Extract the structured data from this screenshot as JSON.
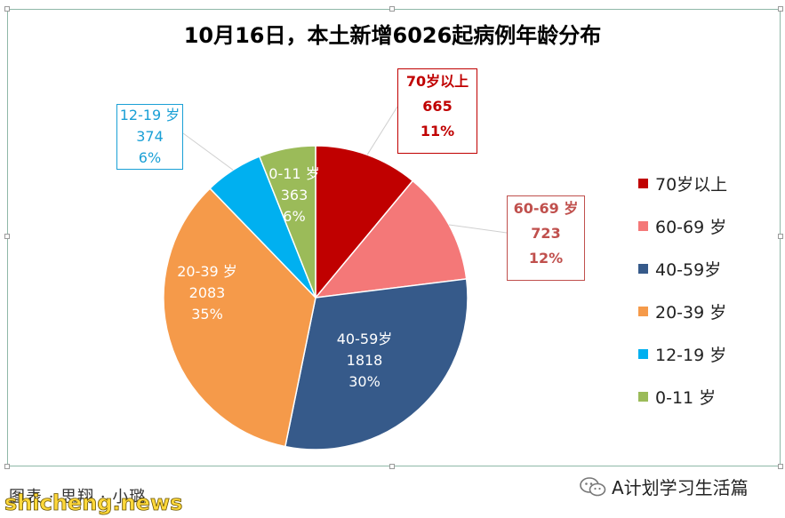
{
  "chart_data": {
    "type": "pie",
    "title": "10月16日，本土新增6026起病例年龄分布",
    "legend_position": "right",
    "slices": [
      {
        "label": "70岁以上",
        "callout_label": "70岁以上",
        "value": 665,
        "percent": "11%",
        "color": "#c00000",
        "label_color": "#c00000"
      },
      {
        "label": "60-69 岁",
        "callout_label": "60-69 岁",
        "value": 723,
        "percent": "12%",
        "color": "#f47878",
        "label_color": "#c0504d"
      },
      {
        "label": "40-59岁",
        "callout_label": "40-59岁",
        "value": 1818,
        "percent": "30%",
        "color": "#365a8a",
        "label_color": "#ffffff"
      },
      {
        "label": "20-39 岁",
        "callout_label": "20-39 岁",
        "value": 2083,
        "percent": "35%",
        "color": "#f59a4a",
        "label_color": "#ffffff"
      },
      {
        "label": "12-19 岁",
        "callout_label": "12-19 岁",
        "value": 374,
        "percent": "6%",
        "color": "#00b0f0",
        "label_color": "#1aa0d6"
      },
      {
        "label": "0-11 岁",
        "callout_label": "0-11 岁",
        "value": 363,
        "percent": "6%",
        "color": "#9bbb59",
        "label_color": "#ffffff"
      }
    ]
  },
  "footer": {
    "credit": "图表 · 思翔 · 小璐",
    "site_watermark": "shicheng.news",
    "wechat_account": "A计划学习生活篇"
  }
}
